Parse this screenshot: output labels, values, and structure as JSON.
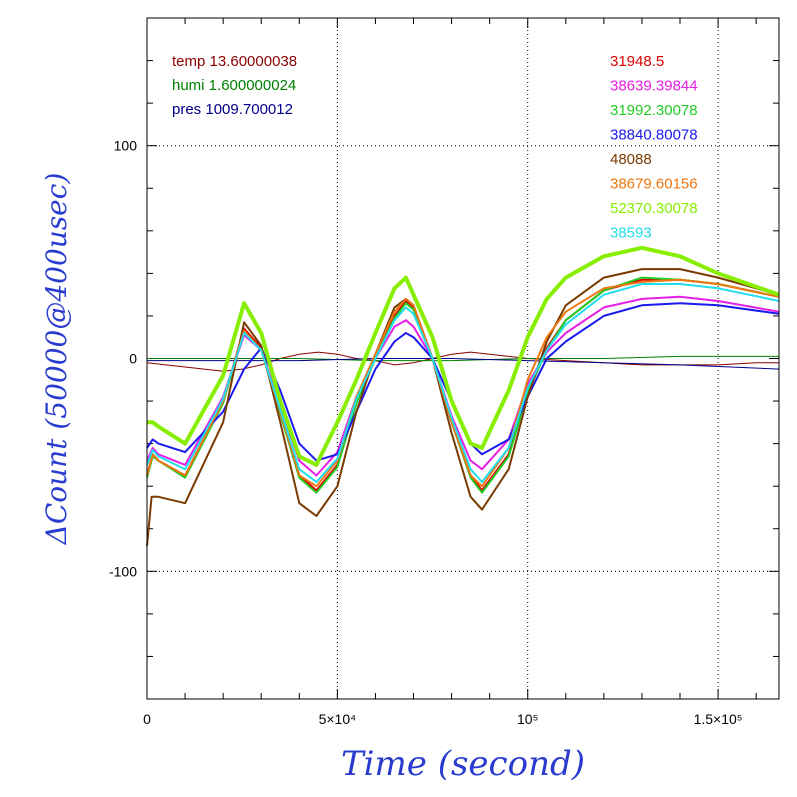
{
  "chart_data": {
    "type": "line",
    "xlabel": "Time (second)",
    "ylabel": "ΔCount (50000@400usec)",
    "xlim": [
      0,
      166000
    ],
    "ylim": [
      -160,
      160
    ],
    "grid": true,
    "x_ticks": [
      {
        "value": 0,
        "label": "0"
      },
      {
        "value": 50000,
        "label": "5×10⁴"
      },
      {
        "value": 100000,
        "label": "10⁵"
      },
      {
        "value": 150000,
        "label": "1.5×10⁵"
      }
    ],
    "y_ticks": [
      {
        "value": -100,
        "label": "-100"
      },
      {
        "value": 0,
        "label": "0"
      },
      {
        "value": 100,
        "label": "100"
      }
    ],
    "environment": [
      {
        "label": "temp 13.60000038",
        "color": "#8b0000",
        "x": [
          0,
          5000,
          10000,
          15000,
          20000,
          25000,
          30000,
          35000,
          40000,
          45000,
          50000,
          55000,
          60000,
          65000,
          70000,
          75000,
          80000,
          85000,
          90000,
          95000,
          100000,
          110000,
          120000,
          130000,
          140000,
          150000,
          160000,
          166000
        ],
        "y": [
          -2,
          -3,
          -4,
          -5,
          -6,
          -5,
          -3,
          0,
          2,
          3,
          2,
          0,
          -1,
          -3,
          -2,
          0,
          2,
          3,
          2,
          1,
          0,
          -1,
          -2,
          -3,
          -3,
          -3,
          -2,
          -2
        ]
      },
      {
        "label": "humi 1.600000024",
        "color": "#008000",
        "x": [
          0,
          20000,
          40000,
          60000,
          80000,
          100000,
          120000,
          140000,
          166000
        ],
        "y": [
          0,
          0,
          0,
          -1,
          -1,
          0,
          0,
          1,
          1
        ]
      },
      {
        "label": "pres 1009.700012",
        "color": "#00008b",
        "x": [
          0,
          20000,
          40000,
          60000,
          80000,
          100000,
          120000,
          140000,
          166000
        ],
        "y": [
          -1,
          -1,
          -1,
          0,
          0,
          -1,
          -2,
          -3,
          -5
        ]
      }
    ],
    "series": [
      {
        "name": "31948.5",
        "color": "#dd0000",
        "width": 2,
        "x": [
          0,
          1500,
          3000,
          10000,
          20000,
          25500,
          30000,
          35000,
          40000,
          44500,
          50000,
          55000,
          60000,
          65000,
          68000,
          70000,
          75000,
          80000,
          85000,
          88000,
          95000,
          100000,
          105000,
          110000,
          120000,
          130000,
          140000,
          150000,
          166000
        ],
        "y": [
          -55,
          -45,
          -48,
          -55,
          -20,
          14,
          5,
          -25,
          -55,
          -62,
          -50,
          -20,
          0,
          20,
          27,
          24,
          0,
          -30,
          -55,
          -62,
          -45,
          -15,
          5,
          18,
          32,
          37,
          37,
          35,
          29
        ]
      },
      {
        "name": "38639.39844",
        "color": "#e61ee6",
        "width": 2,
        "x": [
          0,
          1500,
          3000,
          10000,
          20000,
          25500,
          30000,
          35000,
          40000,
          44500,
          50000,
          55000,
          60000,
          65000,
          68000,
          70000,
          75000,
          80000,
          85000,
          88000,
          95000,
          100000,
          105000,
          110000,
          120000,
          130000,
          140000,
          150000,
          166000
        ],
        "y": [
          -48,
          -42,
          -45,
          -50,
          -18,
          11,
          4,
          -22,
          -48,
          -55,
          -44,
          -18,
          0,
          15,
          18,
          15,
          0,
          -27,
          -48,
          -52,
          -38,
          -12,
          3,
          12,
          24,
          28,
          29,
          27,
          22
        ]
      },
      {
        "name": "31992.30078",
        "color": "#22cc22",
        "width": 2,
        "x": [
          0,
          1500,
          3000,
          10000,
          20000,
          25500,
          30000,
          35000,
          40000,
          44500,
          50000,
          55000,
          60000,
          65000,
          68000,
          70000,
          75000,
          80000,
          85000,
          88000,
          95000,
          100000,
          105000,
          110000,
          120000,
          130000,
          140000,
          150000,
          166000
        ],
        "y": [
          -56,
          -46,
          -48,
          -56,
          -21,
          13,
          4,
          -26,
          -56,
          -63,
          -51,
          -21,
          0,
          19,
          26,
          23,
          0,
          -30,
          -56,
          -63,
          -46,
          -16,
          4,
          18,
          32,
          38,
          37,
          35,
          29
        ]
      },
      {
        "name": "38840.80078",
        "color": "#1a1aee",
        "width": 2,
        "x": [
          0,
          1500,
          3000,
          10000,
          20000,
          25500,
          30000,
          35000,
          40000,
          44500,
          50000,
          55000,
          60000,
          65000,
          68000,
          70000,
          75000,
          80000,
          85000,
          88000,
          95000,
          100000,
          105000,
          110000,
          120000,
          130000,
          140000,
          150000,
          166000
        ],
        "y": [
          -42,
          -38,
          -40,
          -44,
          -25,
          -5,
          5,
          -15,
          -40,
          -48,
          -45,
          -25,
          -5,
          8,
          12,
          10,
          0,
          -20,
          -40,
          -45,
          -38,
          -18,
          0,
          8,
          20,
          25,
          26,
          25,
          21
        ]
      },
      {
        "name": "48088",
        "color": "#7a3a00",
        "width": 2,
        "x": [
          0,
          1200,
          3000,
          10000,
          20000,
          25500,
          30000,
          35000,
          40000,
          44500,
          50000,
          55000,
          60000,
          65000,
          68000,
          70000,
          75000,
          80000,
          85000,
          88000,
          95000,
          100000,
          105000,
          110000,
          120000,
          130000,
          140000,
          150000,
          166000
        ],
        "y": [
          -88,
          -65,
          -65,
          -68,
          -30,
          17,
          6,
          -30,
          -68,
          -74,
          -60,
          -25,
          2,
          24,
          28,
          25,
          0,
          -35,
          -65,
          -71,
          -52,
          -18,
          8,
          25,
          38,
          42,
          42,
          38,
          30
        ]
      },
      {
        "name": "38679.60156",
        "color": "#ee7711",
        "width": 2,
        "x": [
          0,
          1500,
          3000,
          10000,
          20000,
          25500,
          30000,
          35000,
          40000,
          44500,
          50000,
          55000,
          60000,
          65000,
          68000,
          70000,
          75000,
          80000,
          85000,
          88000,
          95000,
          100000,
          105000,
          110000,
          120000,
          130000,
          140000,
          150000,
          166000
        ],
        "y": [
          -55,
          -45,
          -48,
          -55,
          -20,
          13,
          4,
          -25,
          -55,
          -60,
          -48,
          -18,
          2,
          22,
          28,
          25,
          0,
          -30,
          -55,
          -60,
          -42,
          -10,
          10,
          22,
          33,
          36,
          37,
          35,
          29
        ]
      },
      {
        "name": "52370.30078",
        "color": "#88ee00",
        "width": 4,
        "x": [
          0,
          1500,
          3000,
          10000,
          20000,
          25500,
          30000,
          35000,
          40000,
          44500,
          50000,
          55000,
          60000,
          65000,
          68000,
          70000,
          75000,
          80000,
          85000,
          88000,
          95000,
          100000,
          105000,
          110000,
          120000,
          130000,
          140000,
          150000,
          166000
        ],
        "y": [
          -30,
          -30,
          -32,
          -40,
          -8,
          26,
          12,
          -20,
          -46,
          -50,
          -30,
          -10,
          12,
          33,
          38,
          30,
          10,
          -20,
          -40,
          -42,
          -15,
          10,
          28,
          38,
          48,
          52,
          48,
          40,
          30
        ]
      },
      {
        "name": "38593",
        "color": "#22ddee",
        "width": 2,
        "x": [
          0,
          1500,
          3000,
          10000,
          20000,
          25500,
          30000,
          35000,
          40000,
          44500,
          50000,
          55000,
          60000,
          65000,
          68000,
          70000,
          75000,
          80000,
          85000,
          88000,
          95000,
          100000,
          105000,
          110000,
          120000,
          130000,
          140000,
          150000,
          166000
        ],
        "y": [
          -50,
          -43,
          -46,
          -52,
          -19,
          12,
          4,
          -24,
          -52,
          -58,
          -47,
          -19,
          0,
          18,
          24,
          21,
          0,
          -28,
          -52,
          -58,
          -42,
          -14,
          4,
          16,
          30,
          35,
          35,
          33,
          27
        ]
      }
    ]
  }
}
